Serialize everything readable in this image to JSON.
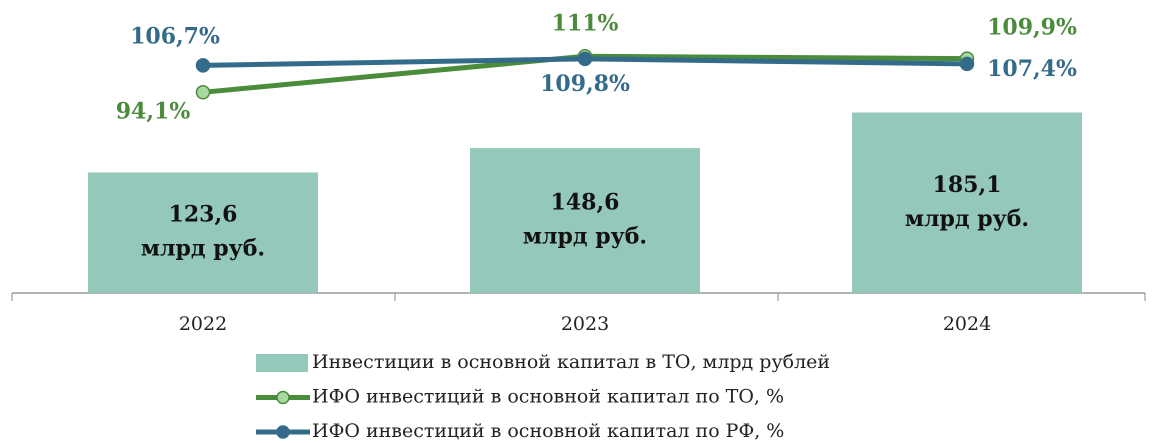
{
  "chart_data": {
    "type": "bar",
    "categories": [
      "2022",
      "2023",
      "2024"
    ],
    "ylim": [
      0,
      280
    ],
    "y2lim": [
      0,
      128
    ],
    "series": [
      {
        "name": "Инвестиции в основной капитал в ТО, млрд рублей",
        "type": "bar",
        "color": "#94c8bb",
        "values": [
          123.6,
          148.6,
          185.1
        ],
        "value_labels": [
          "123,6",
          "148,6",
          "185,1"
        ],
        "value_unit": "млрд руб."
      },
      {
        "name": "ИФО инвестиций в основной капитал по ТО, %",
        "type": "line",
        "axis": "y2",
        "color": "#4a8c3c",
        "marker_fill": "#a8d8a0",
        "values": [
          94.1,
          111,
          109.9
        ],
        "value_labels": [
          "94,1%",
          "111%",
          "109,9%"
        ]
      },
      {
        "name": "ИФО инвестиций в основной капитал по РФ, %",
        "type": "line",
        "axis": "y2",
        "color": "#356b8a",
        "marker_fill": "#356b8a",
        "values": [
          106.7,
          109.8,
          107.4
        ],
        "value_labels": [
          "106,7%",
          "109,8%",
          "107,4%"
        ]
      }
    ],
    "legend": "bottom"
  }
}
